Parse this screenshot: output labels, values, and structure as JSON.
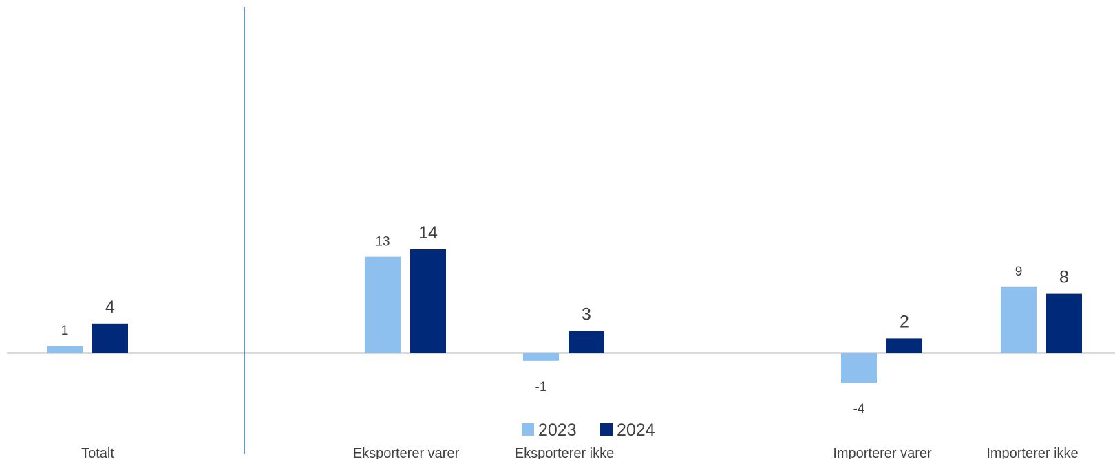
{
  "chart_data": {
    "type": "bar",
    "categories": [
      "Totalt",
      "Eksporterer varer",
      "Eksporterer ikke",
      "Importerer varer",
      "Importerer ikke"
    ],
    "series": [
      {
        "name": "2023",
        "values": [
          1,
          13,
          -1,
          -4,
          9
        ]
      },
      {
        "name": "2024",
        "values": [
          4,
          14,
          3,
          2,
          8
        ]
      }
    ],
    "ylim": [
      -7,
      47
    ],
    "grid": false,
    "legend_position": "bottom-center",
    "colors": {
      "2023": "#8ec0ef",
      "2024": "#00297a",
      "axis": "#d9d9d9",
      "separator": "#2e75b6",
      "text": "#404040"
    }
  }
}
